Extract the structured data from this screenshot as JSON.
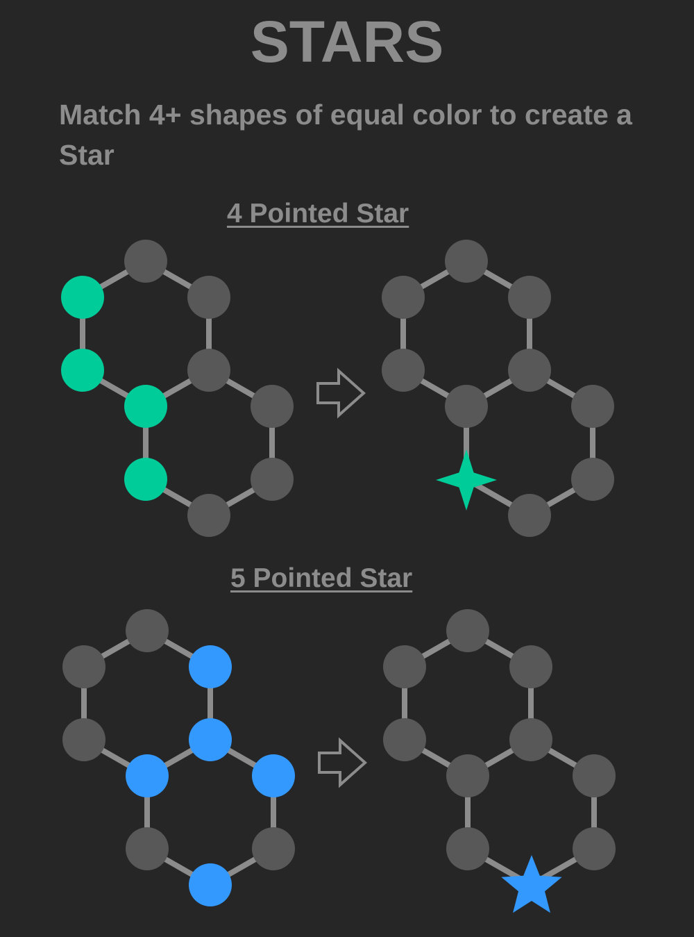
{
  "title": "STARS",
  "instruction": "Match 4+ shapes of equal color to create a Star",
  "colors": {
    "background": "#262626",
    "text": "#8c8c8c",
    "node_gray": "#585858",
    "edge": "#8c8c8c",
    "green": "#00cc99",
    "blue": "#3399ff",
    "arrow": "#8c8c8c"
  },
  "sections": [
    {
      "title": "4 Pointed Star",
      "before": {
        "nodes": [
          "green",
          "gray",
          "gray",
          "green",
          "gray",
          "green",
          "gray",
          "green",
          "gray",
          "gray"
        ]
      },
      "after": {
        "nodes": [
          "gray",
          "gray",
          "gray",
          "gray",
          "gray",
          "gray",
          "gray",
          "star4-green",
          "gray",
          "gray"
        ]
      },
      "arrow_icon": "right-arrow-outline-icon"
    },
    {
      "title": "5 Pointed Star",
      "before": {
        "nodes": [
          "gray",
          "gray",
          "blue",
          "gray",
          "blue",
          "blue",
          "blue",
          "gray",
          "gray",
          "blue"
        ]
      },
      "after": {
        "nodes": [
          "gray",
          "gray",
          "gray",
          "gray",
          "gray",
          "gray",
          "gray",
          "gray",
          "gray",
          "star5-blue"
        ]
      },
      "arrow_icon": "right-arrow-outline-icon"
    }
  ]
}
